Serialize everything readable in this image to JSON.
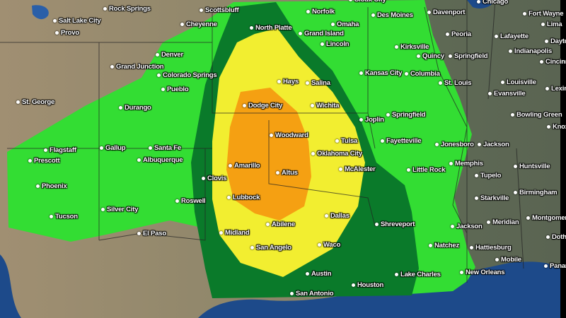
{
  "map": {
    "colors": {
      "marginal": "#33dd33",
      "slight": "#0a7a2a",
      "enhanced": "#f2ee30",
      "moderate": "#f5a012",
      "terrain_west": "#9c8a6c",
      "terrain_east": "#5f6a55",
      "water": "#1d4a8a"
    },
    "cities": [
      "Salt Lake City",
      "Provo",
      "Rock Springs",
      "Scottsbluff",
      "Sioux City",
      "Norfolk",
      "Omaha",
      "Des Moines",
      "Davenport",
      "Chicago",
      "Fort Wayne",
      "Lima",
      "Cheyenne",
      "North Platte",
      "Grand Island",
      "Lincoln",
      "Kirksville",
      "Peoria",
      "Lafayette",
      "Indianapolis",
      "Dayton",
      "Quincy",
      "Springfield",
      "Cincinnati",
      "Denver",
      "Grand Junction",
      "Colorado Springs",
      "Kansas City",
      "Columbia",
      "St. Louis",
      "Louisville",
      "Lexington",
      "Pueblo",
      "Hays",
      "Salina",
      "Evansville",
      "St. George",
      "Durango",
      "Dodge City",
      "Wichita",
      "Joplin",
      "Springfield",
      "Bowling Green",
      "Knoxville",
      "Woodward",
      "Tulsa",
      "Fayetteville",
      "Jonesboro",
      "Jackson",
      "Flagstaff",
      "Gallup",
      "Santa Fe",
      "Amarillo",
      "Oklahoma City",
      "McAlester",
      "Little Rock",
      "Memphis",
      "Huntsville",
      "Prescott",
      "Albuquerque",
      "Clovis",
      "Altus",
      "Tupelo",
      "Phoenix",
      "Lubbock",
      "Roswell",
      "Starkville",
      "Birmingham",
      "Silver City",
      "Dallas",
      "Tucson",
      "El Paso",
      "Abilene",
      "Midland",
      "Shreveport",
      "Meridian",
      "Jackson",
      "Montgomery",
      "Natchez",
      "San Angelo",
      "Waco",
      "Dothan",
      "Hattiesburg",
      "Austin",
      "Mobile",
      "Lake Charles",
      "Houston",
      "San Antonio",
      "New Orleans",
      "Panama City"
    ]
  }
}
